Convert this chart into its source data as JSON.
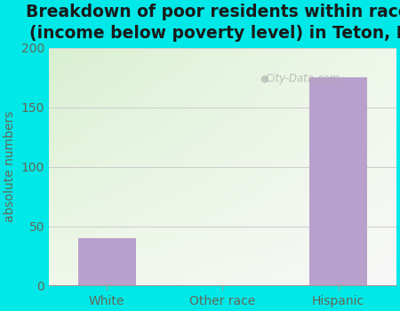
{
  "title": "Breakdown of poor residents within races\n(income below poverty level) in Teton, ID",
  "categories": [
    "White",
    "Other race",
    "Hispanic"
  ],
  "values": [
    40,
    0,
    175
  ],
  "bar_color": "#b8a0cc",
  "bar_edgecolor": "#b8a0cc",
  "ylabel": "absolute numbers",
  "ylim": [
    0,
    200
  ],
  "yticks": [
    0,
    50,
    100,
    150,
    200
  ],
  "bg_outer": "#00e8e8",
  "bg_inner_topleft": "#f0f8ea",
  "bg_inner_topright": "#f8f8f8",
  "bg_inner_bottomleft": "#d8efd0",
  "bg_inner_bottomright": "#f0f0f0",
  "title_fontsize": 13.5,
  "title_color": "#1a1a1a",
  "axis_label_color": "#666655",
  "tick_label_color": "#666655",
  "watermark": "City-Data.com",
  "grid_color": "#cccccc"
}
